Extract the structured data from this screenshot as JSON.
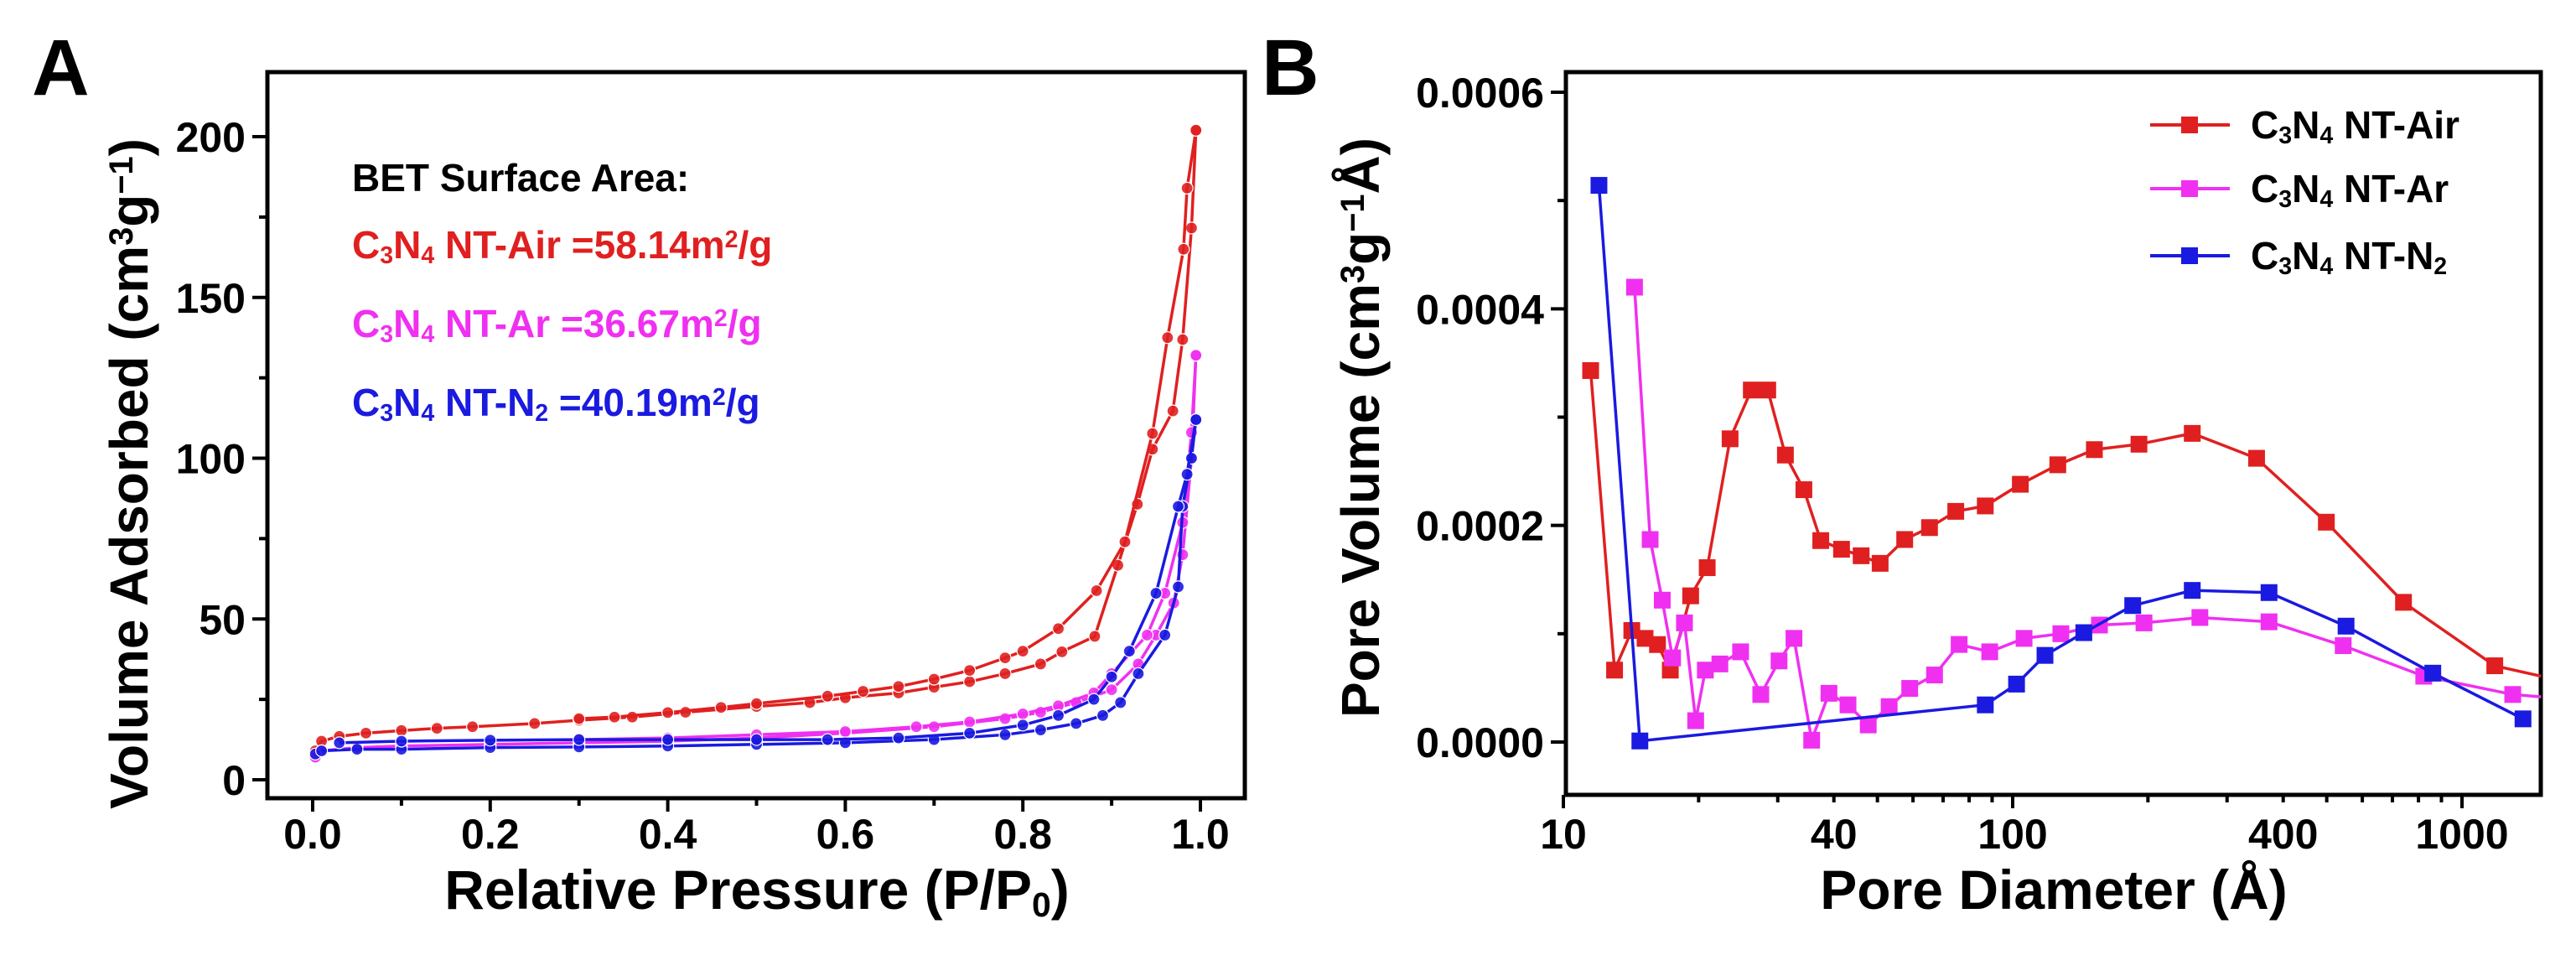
{
  "colors": {
    "air": "#e02020",
    "ar": "#f030f0",
    "n2": "#1a1ae0",
    "axis": "#000000"
  },
  "chart_data": [
    {
      "panel": "A",
      "type": "line",
      "xlabel": [
        "Relative Pressure (P/P",
        "0",
        ")"
      ],
      "ylabel": [
        "Volume Adsorbed (cm",
        "3",
        "g",
        "−1",
        ")"
      ],
      "xlim": [
        -0.05,
        1.05
      ],
      "ylim": [
        -5,
        225
      ],
      "xticks": [
        "0.0",
        "0.2",
        "0.4",
        "0.6",
        "0.8",
        "1.0"
      ],
      "xtick_values": [
        0,
        0.2,
        0.4,
        0.6,
        0.8,
        1.0
      ],
      "yticks": [
        "0",
        "50",
        "100",
        "150",
        "200"
      ],
      "ytick_values": [
        0,
        50,
        100,
        150,
        200
      ],
      "annotation_title": "BET Surface Area:",
      "series": [
        {
          "key": "air",
          "name": [
            [
              "C",
              ""
            ],
            [
              "3",
              "sub"
            ],
            [
              "N",
              ""
            ],
            [
              "4",
              "sub"
            ],
            [
              " NT-Air =58.14m",
              ""
            ],
            [
              "2",
              "sup"
            ],
            [
              "/g",
              ""
            ]
          ],
          "adsorption": [
            [
              0.003,
              9
            ],
            [
              0.01,
              12
            ],
            [
              0.03,
              13.5
            ],
            [
              0.06,
              14.5
            ],
            [
              0.1,
              15.3
            ],
            [
              0.14,
              16
            ],
            [
              0.18,
              16.5
            ],
            [
              0.25,
              17.5
            ],
            [
              0.3,
              18.5
            ],
            [
              0.36,
              19.5
            ],
            [
              0.42,
              21
            ],
            [
              0.5,
              22.8
            ],
            [
              0.56,
              24
            ],
            [
              0.6,
              25.5
            ],
            [
              0.66,
              27
            ],
            [
              0.7,
              28.8
            ],
            [
              0.74,
              30.5
            ],
            [
              0.78,
              33
            ],
            [
              0.82,
              36
            ],
            [
              0.844,
              39.8
            ],
            [
              0.881,
              44.6
            ],
            [
              0.907,
              66.7
            ],
            [
              0.929,
              85.7
            ],
            [
              0.946,
              102.8
            ],
            [
              0.969,
              114.7
            ],
            [
              0.98,
              136.9
            ],
            [
              0.99,
              171.6
            ],
            [
              0.995,
              202
            ]
          ],
          "desorption": [
            [
              0.995,
              202
            ],
            [
              0.985,
              184
            ],
            [
              0.981,
              165
            ],
            [
              0.963,
              137.5
            ],
            [
              0.946,
              107.7
            ],
            [
              0.915,
              74
            ],
            [
              0.883,
              58.8
            ],
            [
              0.84,
              47
            ],
            [
              0.8,
              40
            ],
            [
              0.78,
              37.9
            ],
            [
              0.74,
              34
            ],
            [
              0.7,
              31.3
            ],
            [
              0.66,
              29
            ],
            [
              0.62,
              27.5
            ],
            [
              0.58,
              26
            ],
            [
              0.5,
              23.7
            ],
            [
              0.46,
              22.5
            ],
            [
              0.4,
              20.9
            ],
            [
              0.34,
              19.5
            ],
            [
              0.3,
              19
            ]
          ]
        },
        {
          "key": "ar",
          "name": [
            [
              "C",
              ""
            ],
            [
              "3",
              "sub"
            ],
            [
              "N",
              ""
            ],
            [
              "4",
              "sub"
            ],
            [
              " NT-Ar  =36.67m",
              ""
            ],
            [
              "2",
              "sup"
            ],
            [
              "/g",
              ""
            ]
          ],
          "adsorption": [
            [
              0.003,
              7
            ],
            [
              0.01,
              9
            ],
            [
              0.05,
              10
            ],
            [
              0.1,
              10.5
            ],
            [
              0.2,
              11
            ],
            [
              0.3,
              11.5
            ],
            [
              0.4,
              12
            ],
            [
              0.5,
              13
            ],
            [
              0.6,
              14.5
            ],
            [
              0.7,
              16.5
            ],
            [
              0.78,
              19
            ],
            [
              0.82,
              21
            ],
            [
              0.86,
              24
            ],
            [
              0.9,
              28
            ],
            [
              0.93,
              36
            ],
            [
              0.95,
              45
            ],
            [
              0.97,
              55
            ],
            [
              0.98,
              70
            ],
            [
              0.99,
              100
            ],
            [
              0.995,
              132
            ]
          ],
          "desorption": [
            [
              0.995,
              132
            ],
            [
              0.99,
              108
            ],
            [
              0.98,
              80
            ],
            [
              0.96,
              58
            ],
            [
              0.94,
              45
            ],
            [
              0.9,
              33
            ],
            [
              0.88,
              27
            ],
            [
              0.84,
              23
            ],
            [
              0.8,
              20.5
            ],
            [
              0.74,
              18
            ],
            [
              0.68,
              16.5
            ],
            [
              0.6,
              15
            ],
            [
              0.5,
              14
            ],
            [
              0.4,
              13
            ],
            [
              0.3,
              12.5
            ]
          ]
        },
        {
          "key": "n2",
          "name": [
            [
              "C",
              ""
            ],
            [
              "3",
              "sub"
            ],
            [
              "N",
              ""
            ],
            [
              "4",
              "sub"
            ],
            [
              " NT-N",
              ""
            ],
            [
              "2",
              "sub"
            ],
            [
              "  =40.19m",
              ""
            ],
            [
              "2",
              "sup"
            ],
            [
              "/g",
              ""
            ]
          ],
          "adsorption": [
            [
              0.003,
              8
            ],
            [
              0.01,
              9
            ],
            [
              0.05,
              9.5
            ],
            [
              0.1,
              9.5
            ],
            [
              0.2,
              10
            ],
            [
              0.3,
              10.2
            ],
            [
              0.4,
              10.5
            ],
            [
              0.5,
              11
            ],
            [
              0.6,
              11.5
            ],
            [
              0.7,
              12.5
            ],
            [
              0.78,
              14
            ],
            [
              0.82,
              15.5
            ],
            [
              0.86,
              17.5
            ],
            [
              0.89,
              20
            ],
            [
              0.91,
              24
            ],
            [
              0.93,
              33
            ],
            [
              0.96,
              45
            ],
            [
              0.975,
              60
            ],
            [
              0.98,
              85
            ],
            [
              0.99,
              100
            ],
            [
              0.995,
              112
            ]
          ],
          "desorption": [
            [
              0.995,
              112
            ],
            [
              0.985,
              95
            ],
            [
              0.975,
              85
            ],
            [
              0.95,
              58
            ],
            [
              0.92,
              40
            ],
            [
              0.9,
              32
            ],
            [
              0.88,
              25
            ],
            [
              0.84,
              20
            ],
            [
              0.8,
              17
            ],
            [
              0.74,
              14.5
            ],
            [
              0.66,
              13
            ],
            [
              0.58,
              12.5
            ],
            [
              0.5,
              12.5
            ],
            [
              0.4,
              12.5
            ],
            [
              0.3,
              12.5
            ],
            [
              0.2,
              12.3
            ],
            [
              0.1,
              12
            ],
            [
              0.03,
              11.5
            ]
          ]
        }
      ]
    },
    {
      "panel": "B",
      "type": "line",
      "xscale": "log",
      "xlabel": "Pore Diameter (Å)",
      "ylabel": [
        "Pore Volume (cm",
        "3",
        "g",
        "−1",
        "Å)"
      ],
      "xlim": [
        10,
        1500
      ],
      "ylim": [
        -5e-05,
        0.00062
      ],
      "xticks": [
        "10",
        "40",
        "100",
        "400",
        "1000"
      ],
      "xtick_values": [
        10,
        40,
        100,
        400,
        1000
      ],
      "yticks": [
        "0.0000",
        "0.0002",
        "0.0004",
        "0.0006"
      ],
      "ytick_values": [
        0,
        0.0002,
        0.0004,
        0.0006
      ],
      "legend_position": "top-right",
      "series": [
        {
          "key": "air",
          "name": [
            [
              "C",
              ""
            ],
            [
              "3",
              "sub"
            ],
            [
              "N",
              ""
            ],
            [
              "4",
              "sub"
            ],
            [
              " NT-Air",
              ""
            ]
          ],
          "points": [
            [
              11.5,
              0.000343
            ],
            [
              13.0,
              6.64e-05
            ],
            [
              14.2,
              0.000103
            ],
            [
              15.2,
              9.57e-05
            ],
            [
              16.2,
              9e-05
            ],
            [
              17.3,
              6.64e-05
            ],
            [
              19.2,
              0.000135
            ],
            [
              20.9,
              0.000161
            ],
            [
              23.5,
              0.00028
            ],
            [
              26.2,
              0.000325
            ],
            [
              28.5,
              0.000325
            ],
            [
              31.2,
              0.000265
            ],
            [
              34.3,
              0.000233
            ],
            [
              37.4,
              0.000186
            ],
            [
              41.6,
              0.000178
            ],
            [
              46.0,
              0.000172
            ],
            [
              50.7,
              0.000165
            ],
            [
              57.5,
              0.000187
            ],
            [
              65.3,
              0.000198
            ],
            [
              74.7,
              0.000213
            ],
            [
              86.9,
              0.000218
            ],
            [
              104,
              0.000238
            ],
            [
              126,
              0.000256
            ],
            [
              152,
              0.00027
            ],
            [
              191,
              0.000275
            ],
            [
              251,
              0.000285
            ],
            [
              349,
              0.000262
            ],
            [
              499,
              0.000203
            ],
            [
              741,
              0.000129
            ],
            [
              1183,
              7.04e-05
            ],
            [
              1500,
              6.08e-05
            ]
          ]
        },
        {
          "key": "ar",
          "name": [
            [
              "C",
              ""
            ],
            [
              "3",
              "sub"
            ],
            [
              "N",
              ""
            ],
            [
              "4",
              "sub"
            ],
            [
              " NT-Ar",
              ""
            ]
          ],
          "points": [
            [
              14.4,
              0.00042
            ],
            [
              15.6,
              0.000187
            ],
            [
              16.6,
              0.000131
            ],
            [
              17.5,
              7.77e-05
            ],
            [
              18.6,
              0.00011
            ],
            [
              19.7,
              1.97e-05
            ],
            [
              20.7,
              6.64e-05
            ],
            [
              22.3,
              7.21e-05
            ],
            [
              24.8,
              8.33e-05
            ],
            [
              27.5,
              4.39e-05
            ],
            [
              30.2,
              7.49e-05
            ],
            [
              32.6,
              9.57e-05
            ],
            [
              35.7,
              1.7e-06
            ],
            [
              39.0,
              4.5e-05
            ],
            [
              43.0,
              3.43e-05
            ],
            [
              47.7,
              1.58e-05
            ],
            [
              53.1,
              3.27e-05
            ],
            [
              59.0,
              4.95e-05
            ],
            [
              67.0,
              6.19e-05
            ],
            [
              76.0,
              9.01e-05
            ],
            [
              88.9,
              8.33e-05
            ],
            [
              106,
              9.57e-05
            ],
            [
              128,
              0.0001
            ],
            [
              156,
              0.000108
            ],
            [
              196,
              0.00011
            ],
            [
              261,
              0.000115
            ],
            [
              372,
              0.000111
            ],
            [
              544,
              8.9e-05
            ],
            [
              822,
              6.08e-05
            ],
            [
              1297,
              4.39e-05
            ],
            [
              1500,
              4.17e-05
            ]
          ]
        },
        {
          "key": "n2",
          "name": [
            [
              "C",
              ""
            ],
            [
              "3",
              "sub"
            ],
            [
              "N",
              ""
            ],
            [
              "4",
              "sub"
            ],
            [
              " NT-N",
              ""
            ],
            [
              "2",
              "sub"
            ]
          ],
          "points": [
            [
              12.0,
              0.000514
            ],
            [
              14.8,
              1e-06
            ],
            [
              86.9,
              3.43e-05
            ],
            [
              102,
              5.35e-05
            ],
            [
              118,
              8e-05
            ],
            [
              144,
              0.000101
            ],
            [
              185,
              0.000126
            ],
            [
              251,
              0.00014
            ],
            [
              372,
              0.000138
            ],
            [
              552,
              0.000107
            ],
            [
              861,
              6.36e-05
            ],
            [
              1367,
              2.14e-05
            ]
          ]
        }
      ]
    }
  ],
  "panel_labels": [
    "A",
    "B"
  ]
}
